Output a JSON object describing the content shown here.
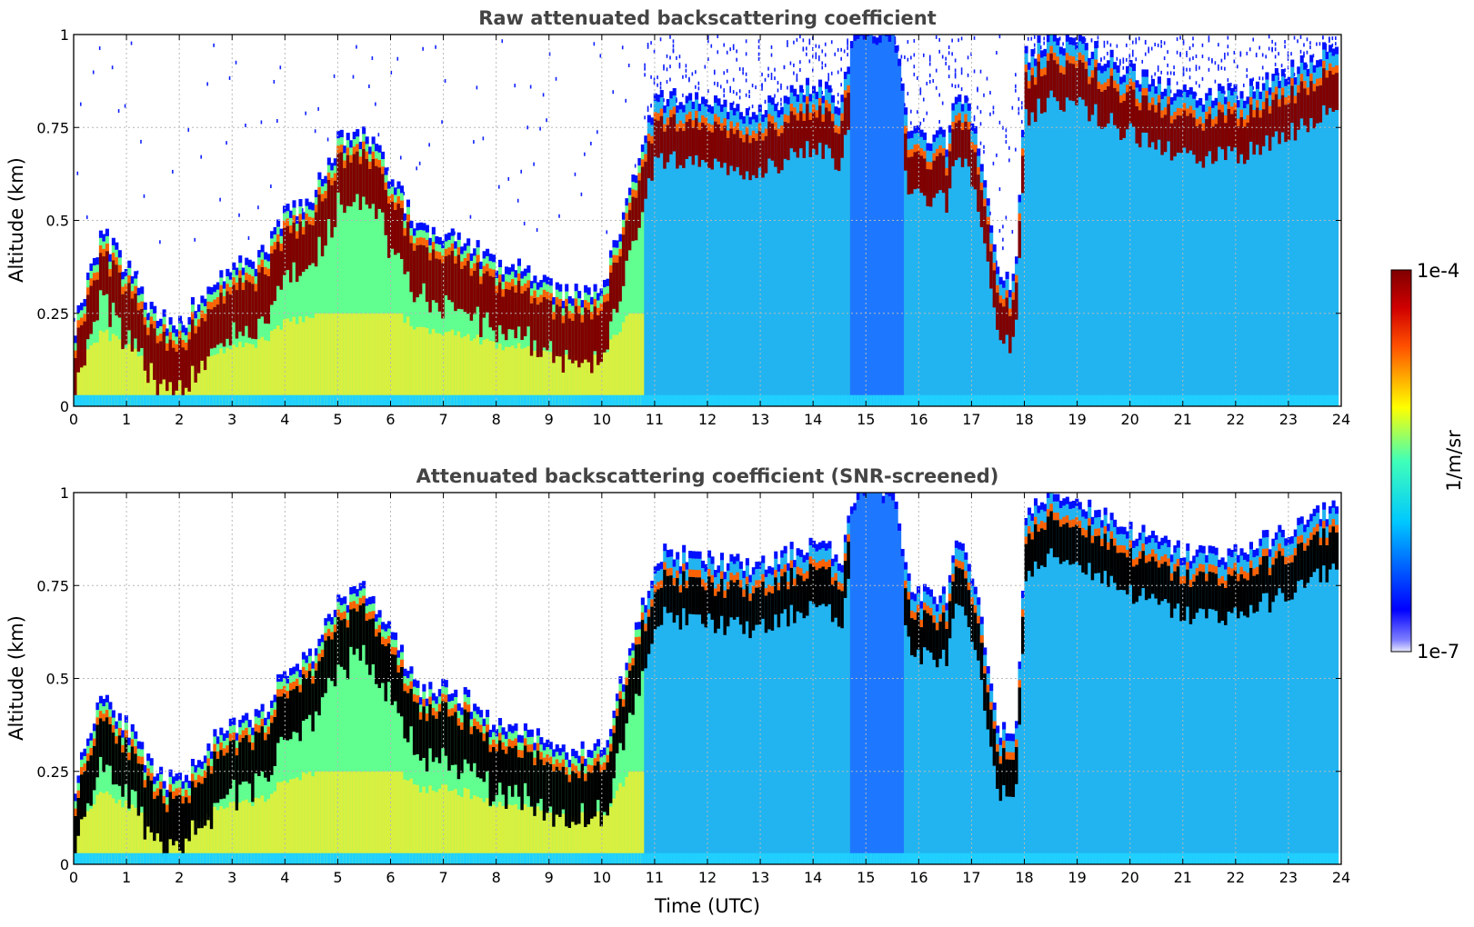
{
  "chart_data": [
    {
      "type": "heatmap",
      "title": "Raw attenuated backscattering coefficient",
      "xlabel": "",
      "ylabel": "Altitude (km)",
      "xlim": [
        0,
        24
      ],
      "ylim": [
        0,
        1
      ],
      "xticks": [
        "0",
        "1",
        "2",
        "3",
        "4",
        "5",
        "6",
        "7",
        "8",
        "9",
        "10",
        "11",
        "12",
        "13",
        "14",
        "15",
        "16",
        "17",
        "18",
        "19",
        "20",
        "21",
        "22",
        "23",
        "24"
      ],
      "yticks": [
        "0",
        "0.25",
        "0.5",
        "0.75",
        "1"
      ],
      "grid": true,
      "layer_top_km": {
        "time_utc": [
          0,
          0.5,
          1,
          1.5,
          2,
          2.5,
          3,
          3.5,
          4,
          4.5,
          5,
          5.5,
          6,
          6.5,
          7,
          7.5,
          8,
          8.5,
          9,
          9.5,
          10,
          10.5,
          10.8,
          11,
          12,
          13,
          14,
          14.5,
          14.8,
          15.5,
          15.8,
          16.5,
          16.7,
          17,
          17.5,
          17.8,
          18,
          18.5,
          19,
          20,
          21,
          22,
          23,
          23.5,
          23.9
        ],
        "altitude_km": [
          0.2,
          0.45,
          0.35,
          0.22,
          0.2,
          0.3,
          0.35,
          0.38,
          0.5,
          0.55,
          0.7,
          0.72,
          0.6,
          0.45,
          0.45,
          0.42,
          0.35,
          0.35,
          0.3,
          0.28,
          0.3,
          0.55,
          0.7,
          0.82,
          0.8,
          0.78,
          0.85,
          0.8,
          1.0,
          1.0,
          0.72,
          0.7,
          0.85,
          0.75,
          0.35,
          0.3,
          0.92,
          0.98,
          0.96,
          0.88,
          0.82,
          0.82,
          0.88,
          0.92,
          0.95
        ]
      }
    },
    {
      "type": "heatmap",
      "title": "Attenuated backscattering coefficient (SNR-screened)",
      "xlabel": "Time (UTC)",
      "ylabel": "Altitude (km)",
      "xlim": [
        0,
        24
      ],
      "ylim": [
        0,
        1
      ],
      "xticks": [
        "0",
        "1",
        "2",
        "3",
        "4",
        "5",
        "6",
        "7",
        "8",
        "9",
        "10",
        "11",
        "12",
        "13",
        "14",
        "15",
        "16",
        "17",
        "18",
        "19",
        "20",
        "21",
        "22",
        "23",
        "24"
      ],
      "yticks": [
        "0",
        "0.25",
        "0.5",
        "0.75",
        "1"
      ],
      "grid": true
    }
  ],
  "colorbar": {
    "max_label": "1e-4",
    "min_label": "1e-7",
    "unit": "1/m/sr",
    "colormap": "jet"
  },
  "colors": {
    "low": "#0000cc",
    "mid": "#00ccff",
    "high": "#ffff00",
    "max": "#800000",
    "saturated": "#000000"
  }
}
